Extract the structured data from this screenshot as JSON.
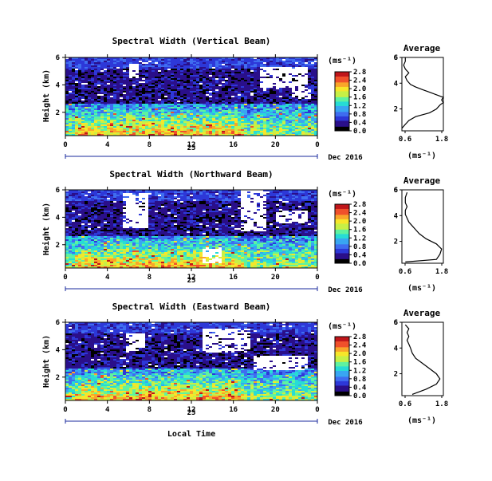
{
  "figure": {
    "xlabel": "Local Time",
    "date_label": "Dec 2016",
    "day_label": "25",
    "time_ticks": [
      "0",
      "4",
      "8",
      "12",
      "16",
      "20",
      "0"
    ],
    "height_ticks": [
      "2",
      "4",
      "6"
    ],
    "avg_title": "Average",
    "avg_xlabel": "(ms⁻¹)",
    "avg_xticks": [
      "0.6",
      "1.8"
    ],
    "colorbar_unit": "(ms⁻¹)",
    "colorbar_ticks": [
      "0.0",
      "0.4",
      "0.8",
      "1.2",
      "1.6",
      "2.0",
      "2.4",
      "2.8"
    ],
    "ylabel": "Height (km)"
  },
  "colors": {
    "colormap": [
      "#000000",
      "#2a0f8a",
      "#2d38d8",
      "#3f6df0",
      "#39a6f2",
      "#27dcd5",
      "#5ff2a0",
      "#c7f046",
      "#f7e62a",
      "#f9a52a",
      "#f0502b",
      "#c0161a"
    ],
    "missing": "#ffffff"
  },
  "chart_data": [
    {
      "type": "heatmap",
      "title": "Spectral Width (Vertical Beam)",
      "xlabel": "Local Time",
      "ylabel": "Height (km)",
      "xlim": [
        0,
        24
      ],
      "ylim": [
        0.3,
        6
      ],
      "colorbar_range": [
        0,
        2.8
      ],
      "profile_x": [
        0.6,
        0.7,
        0.8,
        1.0,
        1.4,
        1.6,
        1.7,
        1.8,
        1.75,
        1.8,
        1.6,
        1.4,
        1.2,
        1.0,
        0.85,
        0.75,
        0.7,
        0.8,
        0.7,
        0.65,
        0.7,
        0.7
      ],
      "profile_height": [
        0.5,
        0.8,
        1.1,
        1.4,
        1.7,
        2.0,
        2.3,
        2.5,
        2.7,
        2.9,
        3.1,
        3.3,
        3.5,
        3.7,
        3.9,
        4.2,
        4.5,
        4.8,
        5.1,
        5.4,
        5.7,
        6.0
      ],
      "profile_xlim": [
        0.6,
        1.8
      ]
    },
    {
      "type": "heatmap",
      "title": "Spectral Width (Northward Beam)",
      "xlabel": "Local Time",
      "ylabel": "Height (km)",
      "xlim": [
        0,
        24
      ],
      "ylim": [
        0.3,
        6
      ],
      "colorbar_range": [
        0,
        2.8
      ],
      "profile_x": [
        0.7,
        1.6,
        1.7,
        1.75,
        1.6,
        1.3,
        1.1,
        1.0,
        0.9,
        0.8,
        0.75,
        0.7,
        0.7,
        0.75,
        0.7,
        0.7,
        0.75
      ],
      "profile_height": [
        0.4,
        0.6,
        1.0,
        1.4,
        1.8,
        2.2,
        2.6,
        2.9,
        3.2,
        3.5,
        3.8,
        4.1,
        4.4,
        4.7,
        5.0,
        5.4,
        5.8
      ],
      "profile_xlim": [
        0.6,
        1.8
      ]
    },
    {
      "type": "heatmap",
      "title": "Spectral Width (Eastward Beam)",
      "xlabel": "Local Time",
      "ylabel": "Height (km)",
      "xlim": [
        0,
        24
      ],
      "ylim": [
        0.3,
        6
      ],
      "colorbar_range": [
        0,
        2.8
      ],
      "profile_x": [
        0.9,
        1.3,
        1.6,
        1.7,
        1.6,
        1.4,
        1.2,
        1.0,
        0.9,
        0.85,
        0.8,
        0.75,
        0.8,
        0.75,
        0.8,
        0.7
      ],
      "profile_height": [
        0.4,
        0.8,
        1.2,
        1.6,
        2.0,
        2.4,
        2.8,
        3.2,
        3.6,
        4.0,
        4.3,
        4.6,
        4.9,
        5.2,
        5.5,
        5.8
      ],
      "profile_xlim": [
        0.6,
        1.8
      ]
    }
  ]
}
